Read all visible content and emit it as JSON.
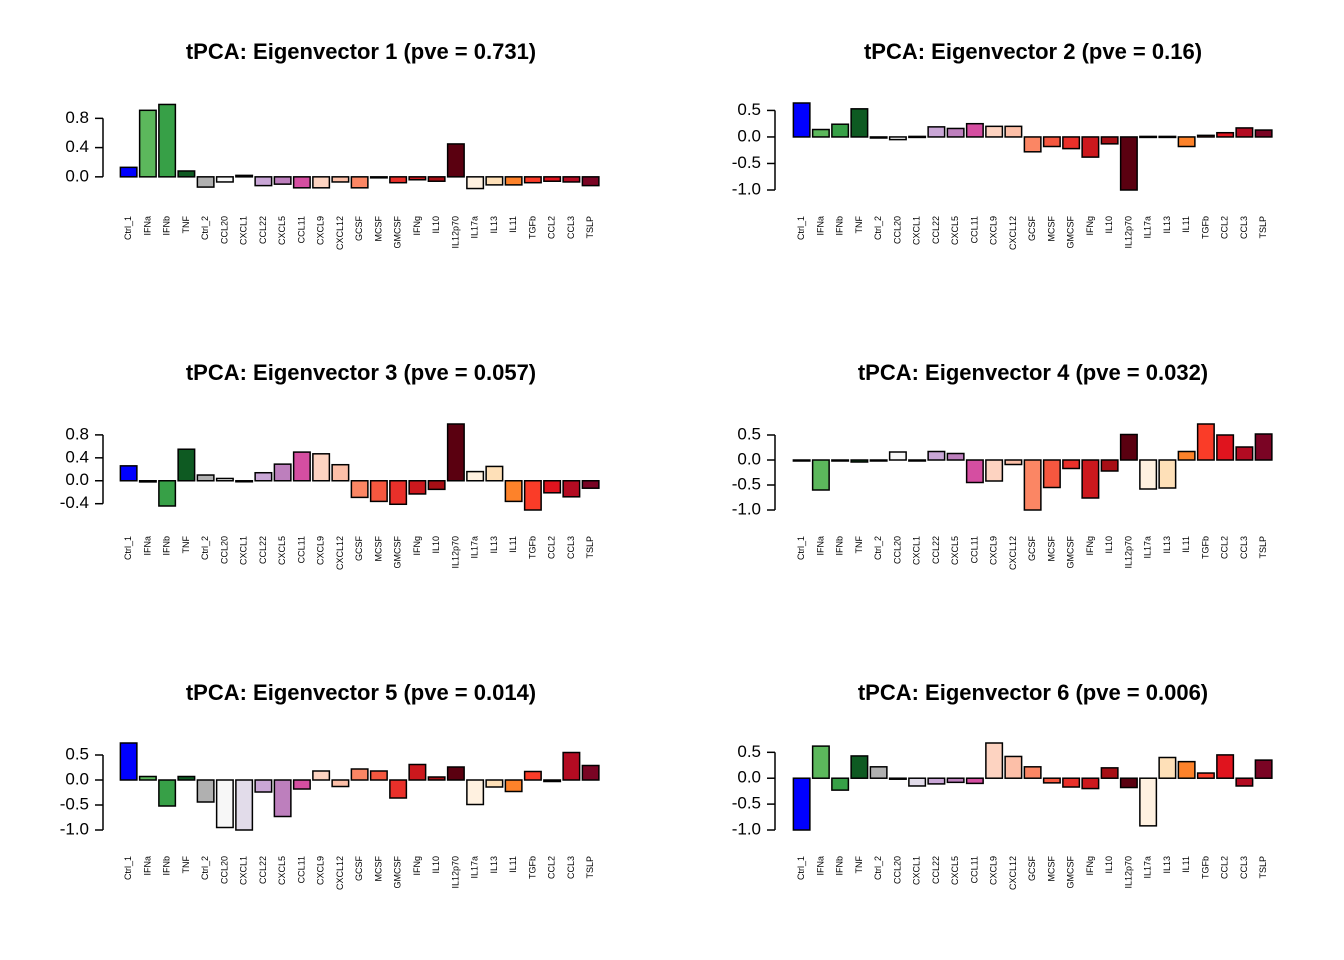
{
  "chart_data": [
    {
      "type": "bar",
      "title": "tPCA: Eigenvector 1 (pve = 0.731)",
      "categories": [
        "Ctrl_1",
        "IFNa",
        "IFNb",
        "TNF",
        "Ctrl_2",
        "CCL20",
        "CXCL1",
        "CCL22",
        "CXCL5",
        "CCL11",
        "CXCL9",
        "CXCL12",
        "GCSF",
        "MCSF",
        "GMCSF",
        "IFNg",
        "IL10",
        "IL12p70",
        "IL17a",
        "IL13",
        "IL11",
        "TGFb",
        "CCL2",
        "CCL3",
        "TSLP"
      ],
      "values": [
        0.13,
        0.91,
        0.99,
        0.08,
        -0.14,
        -0.07,
        0.02,
        -0.12,
        -0.1,
        -0.15,
        -0.15,
        -0.07,
        -0.15,
        -0.01,
        -0.08,
        -0.04,
        -0.06,
        0.45,
        -0.16,
        -0.11,
        -0.11,
        -0.08,
        -0.06,
        -0.07,
        -0.12
      ],
      "yticks": [
        0.0,
        0.4,
        0.8
      ],
      "tick_labels": [
        "0.0",
        "0.4",
        "0.8"
      ],
      "ylim": [
        -0.18,
        1.01
      ],
      "xlabel": "",
      "ylabel": ""
    },
    {
      "type": "bar",
      "title": "tPCA: Eigenvector 2 (pve = 0.16)",
      "categories": [
        "Ctrl_1",
        "IFNa",
        "IFNb",
        "TNF",
        "Ctrl_2",
        "CCL20",
        "CXCL1",
        "CCL22",
        "CXCL5",
        "CCL11",
        "CXCL9",
        "CXCL12",
        "GCSF",
        "MCSF",
        "GMCSF",
        "IFNg",
        "IL10",
        "IL12p70",
        "IL17a",
        "IL13",
        "IL11",
        "TGFb",
        "CCL2",
        "CCL3",
        "TSLP"
      ],
      "values": [
        0.64,
        0.14,
        0.24,
        0.53,
        -0.02,
        -0.05,
        0.01,
        0.19,
        0.16,
        0.25,
        0.2,
        0.2,
        -0.28,
        -0.18,
        -0.22,
        -0.38,
        -0.13,
        -1.0,
        0.01,
        0.01,
        -0.18,
        0.03,
        0.08,
        0.17,
        0.13
      ],
      "yticks": [
        -1.0,
        -0.5,
        0.0,
        0.5
      ],
      "tick_labels": [
        "-1.0",
        "-0.5",
        "0.0",
        "0.5"
      ],
      "ylim": [
        -1.0,
        0.64
      ],
      "xlabel": "",
      "ylabel": ""
    },
    {
      "type": "bar",
      "title": "tPCA: Eigenvector 3 (pve = 0.057)",
      "categories": [
        "Ctrl_1",
        "IFNa",
        "IFNb",
        "TNF",
        "Ctrl_2",
        "CCL20",
        "CXCL1",
        "CCL22",
        "CXCL5",
        "CCL11",
        "CXCL9",
        "CXCL12",
        "GCSF",
        "MCSF",
        "GMCSF",
        "IFNg",
        "IL10",
        "IL12p70",
        "IL17a",
        "IL13",
        "IL11",
        "TGFb",
        "CCL2",
        "CCL3",
        "TSLP"
      ],
      "values": [
        0.26,
        -0.02,
        -0.44,
        0.55,
        0.1,
        0.04,
        -0.01,
        0.14,
        0.29,
        0.5,
        0.47,
        0.28,
        -0.29,
        -0.36,
        -0.41,
        -0.23,
        -0.15,
        0.99,
        0.16,
        0.25,
        -0.36,
        -0.51,
        -0.21,
        -0.28,
        -0.13
      ],
      "yticks": [
        -0.4,
        0.0,
        0.4,
        0.8
      ],
      "tick_labels": [
        "-0.4",
        "0.0",
        "0.4",
        "0.8"
      ],
      "ylim": [
        -0.51,
        0.99
      ],
      "xlabel": "",
      "ylabel": ""
    },
    {
      "type": "bar",
      "title": "tPCA: Eigenvector 4 (pve = 0.032)",
      "categories": [
        "Ctrl_1",
        "IFNa",
        "IFNb",
        "TNF",
        "Ctrl_2",
        "CCL20",
        "CXCL1",
        "CCL22",
        "CXCL5",
        "CCL11",
        "CXCL9",
        "CXCL12",
        "GCSF",
        "MCSF",
        "GMCSF",
        "IFNg",
        "IL10",
        "IL12p70",
        "IL17a",
        "IL13",
        "IL11",
        "TGFb",
        "CCL2",
        "CCL3",
        "TSLP"
      ],
      "values": [
        -0.02,
        -0.6,
        -0.02,
        -0.04,
        0.0,
        0.16,
        -0.01,
        0.17,
        0.13,
        -0.45,
        -0.42,
        -0.09,
        -1.0,
        -0.55,
        -0.17,
        -0.76,
        -0.22,
        0.51,
        -0.58,
        -0.56,
        0.17,
        0.72,
        0.5,
        0.26,
        0.52
      ],
      "yticks": [
        -1.0,
        -0.5,
        0.0,
        0.5
      ],
      "tick_labels": [
        "-1.0",
        "-0.5",
        "0.0",
        "0.5"
      ],
      "ylim": [
        -1.0,
        0.72
      ],
      "xlabel": "",
      "ylabel": ""
    },
    {
      "type": "bar",
      "title": "tPCA: Eigenvector 5 (pve = 0.014)",
      "categories": [
        "Ctrl_1",
        "IFNa",
        "IFNb",
        "TNF",
        "Ctrl_2",
        "CCL20",
        "CXCL1",
        "CCL22",
        "CXCL5",
        "CCL11",
        "CXCL9",
        "CXCL12",
        "GCSF",
        "MCSF",
        "GMCSF",
        "IFNg",
        "IL10",
        "IL12p70",
        "IL17a",
        "IL13",
        "IL11",
        "TGFb",
        "CCL2",
        "CCL3",
        "TSLP"
      ],
      "values": [
        0.74,
        0.07,
        -0.52,
        0.07,
        -0.44,
        -0.95,
        -1.0,
        -0.24,
        -0.73,
        -0.18,
        0.18,
        -0.13,
        0.22,
        0.18,
        -0.36,
        0.31,
        0.06,
        0.26,
        -0.49,
        -0.14,
        -0.23,
        0.17,
        -0.03,
        0.55,
        0.29
      ],
      "yticks": [
        -1.0,
        -0.5,
        0.0,
        0.5
      ],
      "tick_labels": [
        "-1.0",
        "-0.5",
        "0.0",
        "0.5"
      ],
      "ylim": [
        -1.0,
        0.74
      ],
      "xlabel": "",
      "ylabel": ""
    },
    {
      "type": "bar",
      "title": "tPCA: Eigenvector 6 (pve = 0.006)",
      "categories": [
        "Ctrl_1",
        "IFNa",
        "IFNb",
        "TNF",
        "Ctrl_2",
        "CCL20",
        "CXCL1",
        "CCL22",
        "CXCL5",
        "CCL11",
        "CXCL9",
        "CXCL12",
        "GCSF",
        "MCSF",
        "GMCSF",
        "IFNg",
        "IL10",
        "IL12p70",
        "IL17a",
        "IL13",
        "IL11",
        "TGFb",
        "CCL2",
        "CCL3",
        "TSLP"
      ],
      "values": [
        -1.0,
        0.62,
        -0.23,
        0.43,
        0.22,
        -0.01,
        -0.15,
        -0.11,
        -0.08,
        -0.1,
        0.68,
        0.42,
        0.22,
        -0.09,
        -0.17,
        -0.2,
        0.2,
        -0.18,
        -0.92,
        0.4,
        0.32,
        0.1,
        0.45,
        -0.15,
        0.35
      ],
      "yticks": [
        -1.0,
        -0.5,
        0.0,
        0.5
      ],
      "tick_labels": [
        "-1.0",
        "-0.5",
        "0.0",
        "0.5"
      ],
      "ylim": [
        -1.0,
        0.68
      ],
      "xlabel": "",
      "ylabel": ""
    }
  ],
  "bar_colors": [
    "#0000ff",
    "#5cb85c",
    "#37a047",
    "#0e5a22",
    "#b0b0b0",
    "#f7f7f7",
    "#e2dcea",
    "#c9a6d6",
    "#bd7fbd",
    "#d54ea1",
    "#fdd3c1",
    "#fcbfa8",
    "#fb8664",
    "#f5573f",
    "#e9302a",
    "#cc181d",
    "#a70f15",
    "#5a0010",
    "#fff1e0",
    "#fee0b8",
    "#fd822a",
    "#fa3c28",
    "#e0141e",
    "#b30b22",
    "#7a0424"
  ]
}
